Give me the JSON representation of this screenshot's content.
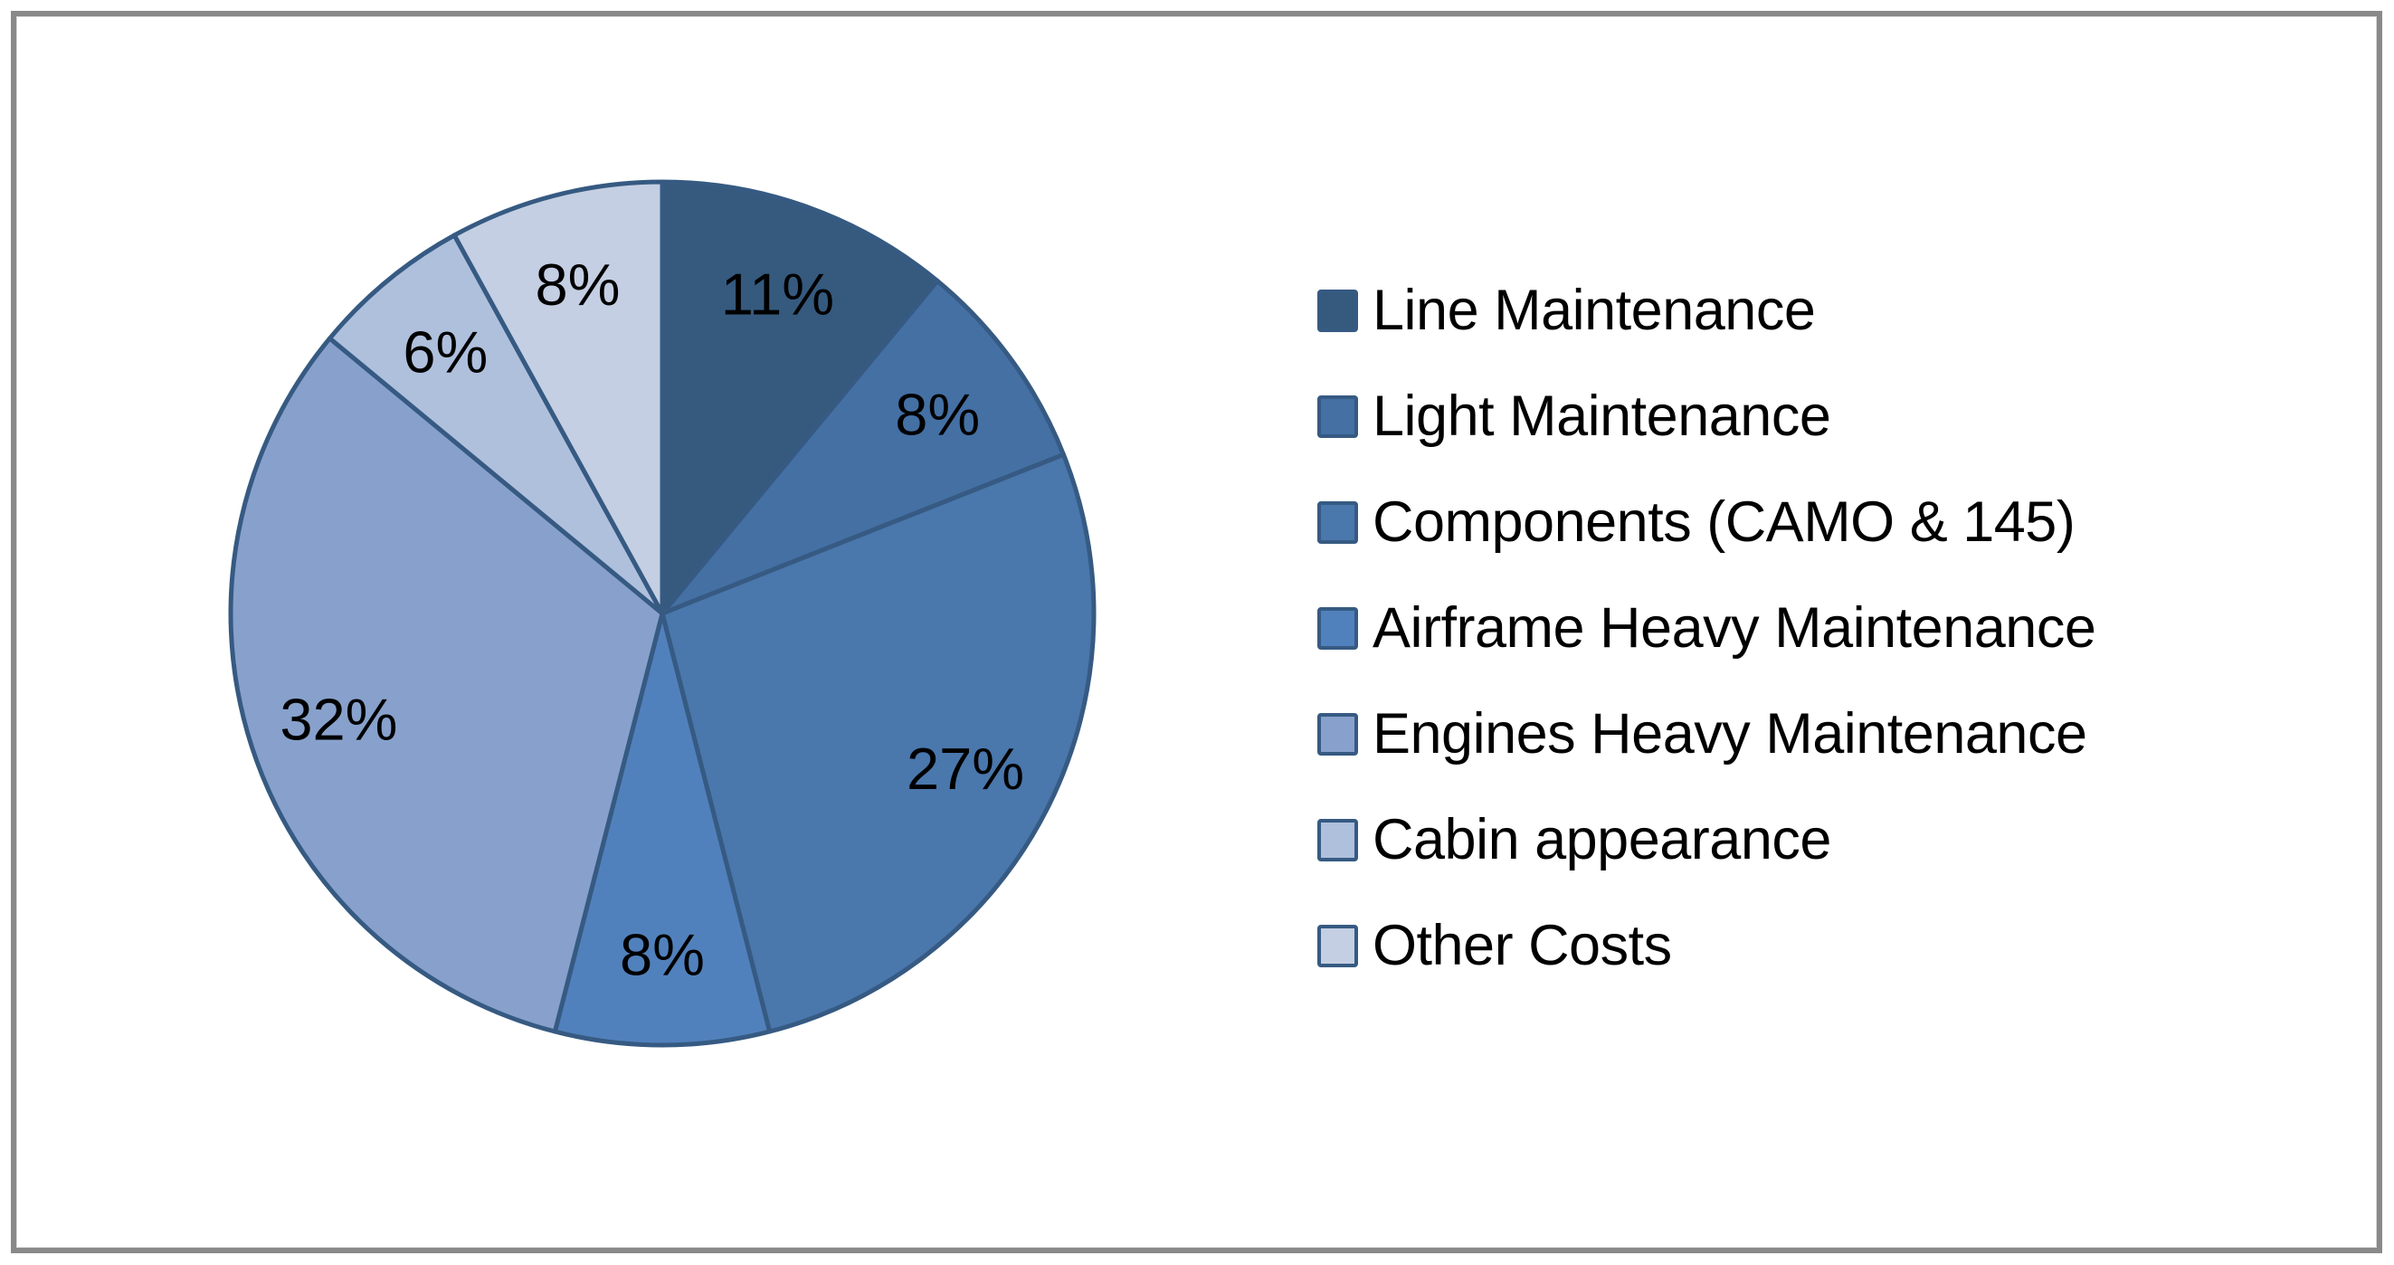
{
  "background_color": "#FFFFFF",
  "frame": {
    "border_color": "#898989"
  },
  "chart_data": {
    "type": "pie",
    "title": "",
    "categories": [
      "Line Maintenance",
      "Light Maintenance",
      "Components (CAMO & 145)",
      "Airframe Heavy Maintenance",
      "Engines Heavy Maintenance",
      "Cabin appearance",
      "Other Costs"
    ],
    "values": [
      11,
      8,
      27,
      8,
      32,
      6,
      8
    ],
    "data_labels": [
      "11%",
      "8%",
      "27%",
      "8%",
      "32%",
      "6%",
      "8%"
    ],
    "unit": "%",
    "start_angle_deg": 0,
    "direction": "clockwise",
    "slice_colors": [
      "#355A7E",
      "#4470A4",
      "#4A77AC",
      "#5181BC",
      "#87A1CC",
      "#AFC0DD",
      "#C4CFE3"
    ],
    "slice_border_color": "#365A82",
    "data_label_color": "#000000",
    "legend_position": "right",
    "legend_text_color": "#000000"
  }
}
